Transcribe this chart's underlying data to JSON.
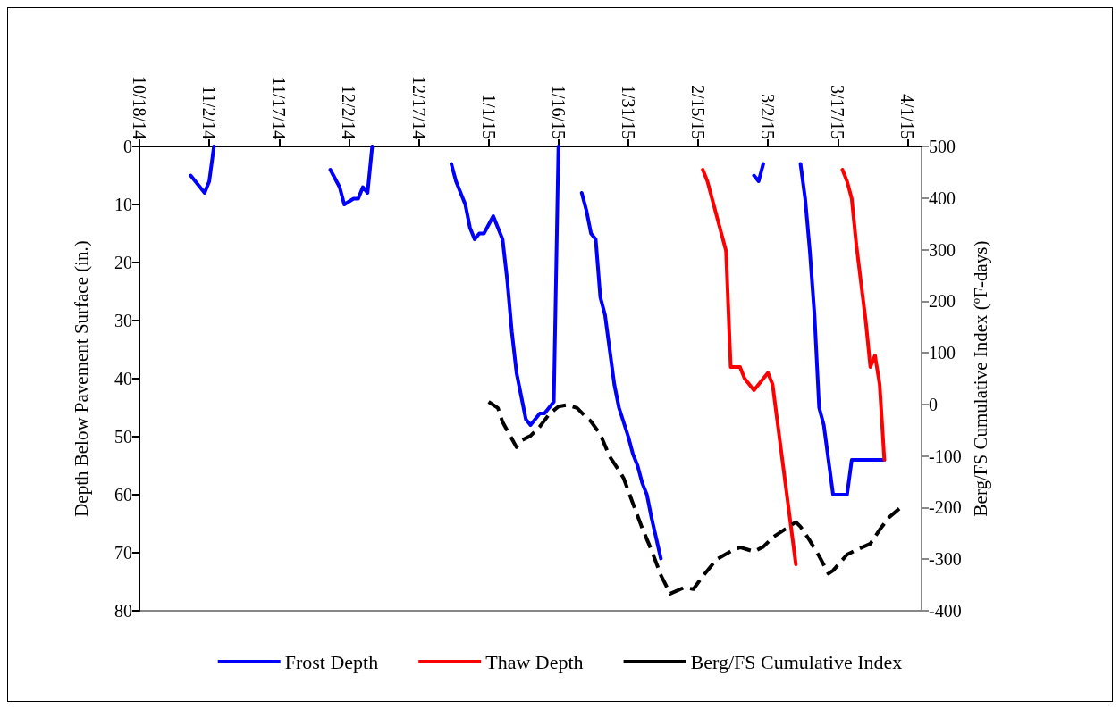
{
  "chart_data": {
    "type": "line",
    "ylabel": "Depth Below Pavement Surface (in.)",
    "y2label": "Berg/FS Cumulative Index (ºF-days)",
    "xlim": [
      "2014-10-18",
      "2015-04-04"
    ],
    "xticks": [
      {
        "value": "2014-10-18",
        "label": "10/18/14"
      },
      {
        "value": "2014-11-02",
        "label": "11/2/14"
      },
      {
        "value": "2014-11-17",
        "label": "11/17/14"
      },
      {
        "value": "2014-12-02",
        "label": "12/2/14"
      },
      {
        "value": "2014-12-17",
        "label": "12/17/14"
      },
      {
        "value": "2015-01-01",
        "label": "1/1/15"
      },
      {
        "value": "2015-01-16",
        "label": "1/16/15"
      },
      {
        "value": "2015-01-31",
        "label": "1/31/15"
      },
      {
        "value": "2015-02-15",
        "label": "2/15/15"
      },
      {
        "value": "2015-03-02",
        "label": "3/2/15"
      },
      {
        "value": "2015-03-17",
        "label": "3/17/15"
      },
      {
        "value": "2015-04-01",
        "label": "4/1/15"
      }
    ],
    "ylim": [
      80,
      0
    ],
    "yticks": [
      0,
      10,
      20,
      30,
      40,
      50,
      60,
      70,
      80
    ],
    "y2lim": [
      -400,
      500
    ],
    "y2ticks": [
      -400,
      -300,
      -200,
      -100,
      0,
      100,
      200,
      300,
      400,
      500
    ],
    "grid": false,
    "legend": "bottom",
    "marker": "none",
    "series": [
      {
        "name": "Frost Depth",
        "color": "#0000ff",
        "line_style": "solid",
        "x": [
          "2014-10-29",
          "2014-10-30",
          "2014-10-31",
          "2014-11-01",
          "2014-11-02",
          "2014-11-03",
          "2014-11-15",
          "2014-11-28",
          "2014-11-30",
          "2014-12-01",
          "2014-12-03",
          "2014-12-04",
          "2014-12-05",
          "2014-12-06",
          "2014-12-07",
          "2014-12-15",
          "2014-12-24",
          "2014-12-25",
          "2014-12-26",
          "2014-12-27",
          "2014-12-28",
          "2014-12-29",
          "2014-12-30",
          "2014-12-31",
          "2015-01-02",
          "2015-01-03",
          "2015-01-04",
          "2015-01-05",
          "2015-01-06",
          "2015-01-07",
          "2015-01-08",
          "2015-01-09",
          "2015-01-10",
          "2015-01-12",
          "2015-01-13",
          "2015-01-14",
          "2015-01-15",
          "2015-01-16",
          "2015-01-18",
          "2015-01-21",
          "2015-01-22",
          "2015-01-23",
          "2015-01-24",
          "2015-01-25",
          "2015-01-26",
          "2015-01-27",
          "2015-01-28",
          "2015-01-29",
          "2015-01-31",
          "2015-02-01",
          "2015-02-02",
          "2015-02-03",
          "2015-02-04",
          "2015-02-05",
          "2015-02-07",
          "2015-02-20",
          "2015-02-27",
          "2015-02-28",
          "2015-03-01",
          "2015-03-05",
          "2015-03-09",
          "2015-03-10",
          "2015-03-11",
          "2015-03-12",
          "2015-03-13",
          "2015-03-14",
          "2015-03-16",
          "2015-03-19",
          "2015-03-20",
          "2015-03-27"
        ],
        "values": [
          5,
          6,
          7,
          8,
          6,
          0,
          null,
          4,
          7,
          10,
          9,
          9,
          7,
          8,
          0,
          null,
          3,
          6,
          8,
          10,
          14,
          16,
          15,
          15,
          12,
          14,
          16,
          23,
          32,
          39,
          43,
          47,
          48,
          46,
          46,
          45,
          44,
          0,
          null,
          8,
          11,
          15,
          16,
          26,
          29,
          35,
          41,
          45,
          50,
          53,
          55,
          58,
          60,
          64,
          71,
          null,
          5,
          6,
          3,
          null,
          3,
          9,
          18,
          29,
          45,
          48,
          60,
          60,
          54,
          54
        ]
      },
      {
        "name": "Thaw Depth",
        "color": "#ff0000",
        "line_style": "solid",
        "x": [
          "2015-02-16",
          "2015-02-17",
          "2015-02-18",
          "2015-02-19",
          "2015-02-20",
          "2015-02-21",
          "2015-02-22",
          "2015-02-24",
          "2015-02-25",
          "2015-02-26",
          "2015-02-27",
          "2015-03-02",
          "2015-03-03",
          "2015-03-08",
          "2015-03-13",
          "2015-03-18",
          "2015-03-19",
          "2015-03-20",
          "2015-03-21",
          "2015-03-23",
          "2015-03-24",
          "2015-03-25",
          "2015-03-26",
          "2015-03-27"
        ],
        "values": [
          4,
          6,
          9,
          12,
          15,
          18,
          38,
          38,
          40,
          41,
          42,
          39,
          41,
          72,
          null,
          4,
          6,
          9,
          17,
          30,
          38,
          36,
          41,
          54
        ]
      },
      {
        "name": "Berg/FS Cumulative Index",
        "color": "#000000",
        "line_style": "dashed",
        "axis": "y2",
        "x": [
          "2015-01-01",
          "2015-01-03",
          "2015-01-04",
          "2015-01-07",
          "2015-01-08",
          "2015-01-10",
          "2015-01-12",
          "2015-01-14",
          "2015-01-16",
          "2015-01-18",
          "2015-01-20",
          "2015-01-22",
          "2015-01-23",
          "2015-01-25",
          "2015-01-27",
          "2015-01-29",
          "2015-01-30",
          "2015-02-01",
          "2015-02-03",
          "2015-02-05",
          "2015-02-07",
          "2015-02-09",
          "2015-02-12",
          "2015-02-14",
          "2015-02-16",
          "2015-02-17",
          "2015-02-19",
          "2015-02-22",
          "2015-02-24",
          "2015-02-27",
          "2015-03-01",
          "2015-03-03",
          "2015-03-06",
          "2015-03-08",
          "2015-03-09",
          "2015-03-11",
          "2015-03-13",
          "2015-03-15",
          "2015-03-16",
          "2015-03-19",
          "2015-03-21",
          "2015-03-24",
          "2015-03-26",
          "2015-03-28",
          "2015-03-31"
        ],
        "values": [
          5,
          -7,
          -34,
          -83,
          -70,
          -61,
          -43,
          -19,
          -4,
          -1,
          -7,
          -25,
          -33,
          -58,
          -101,
          -128,
          -143,
          -192,
          -240,
          -283,
          -331,
          -367,
          -355,
          -358,
          -333,
          -322,
          -300,
          -285,
          -277,
          -285,
          -276,
          -258,
          -240,
          -228,
          -237,
          -264,
          -294,
          -328,
          -322,
          -291,
          -282,
          -270,
          -243,
          -219,
          -196
        ]
      }
    ]
  }
}
